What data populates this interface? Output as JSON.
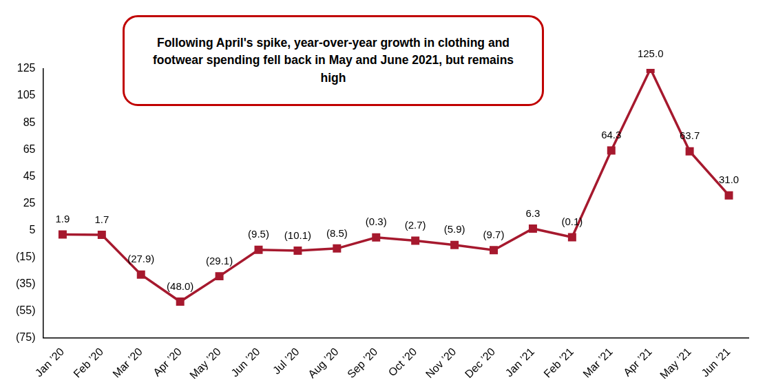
{
  "chart_data": {
    "type": "line",
    "title": "Following April's spike, year-over-year growth in clothing and footwear spending fell back in May and June 2021, but remains high",
    "categories": [
      "Jan ’20",
      "Feb ’20",
      "Mar ’20",
      "Apr ’20",
      "May ’20",
      "Jun ’20",
      "Jul ’20",
      "Aug ’20",
      "Sep ’20",
      "Oct ’20",
      "Nov ’20",
      "Dec ’20",
      "Jan ’21",
      "Feb ’21",
      "Mar ’21",
      "Apr ’21",
      "May ’21",
      "Jun ’21"
    ],
    "values": [
      1.9,
      1.7,
      -27.9,
      -48.0,
      -29.1,
      -9.5,
      -10.1,
      -8.5,
      -0.3,
      -2.7,
      -5.9,
      -9.7,
      6.3,
      -0.1,
      64.3,
      125.0,
      63.7,
      31.0
    ],
    "value_labels": [
      "1.9",
      "1.7",
      "(27.9)",
      "(48.0)",
      "(29.1)",
      "(9.5)",
      "(10.1)",
      "(8.5)",
      "(0.3)",
      "(2.7)",
      "(5.9)",
      "(9.7)",
      "6.3",
      "(0.1)",
      "64.3",
      "125.0",
      "63.7",
      "31.0"
    ],
    "color": "#A6192E",
    "marker": "square",
    "ylim": [
      -75,
      125
    ],
    "yticks": [
      {
        "value": -75,
        "label": "(75)"
      },
      {
        "value": -55,
        "label": "(55)"
      },
      {
        "value": -35,
        "label": "(35)"
      },
      {
        "value": -15,
        "label": "(15)"
      },
      5,
      25,
      45,
      65,
      85,
      105,
      125
    ],
    "grid": false,
    "data_labels": true
  }
}
